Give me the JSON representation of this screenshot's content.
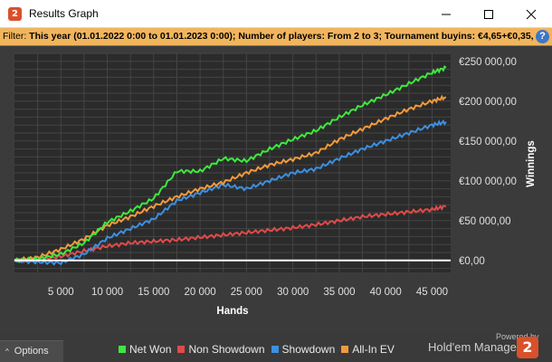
{
  "window": {
    "title": "Results Graph",
    "app_icon_glyph": "2"
  },
  "filter": {
    "prefix": "Filter: ",
    "text": "This year (01.01.2022 0:00 to 01.01.2023 0:00); Number of players: From 2 to 3; Tournament buyins: €4,65+€0,35, ",
    "help_glyph": "?"
  },
  "options": {
    "caret": "^",
    "label": "Options"
  },
  "brand": {
    "powered_by": "Powered by",
    "name": "Hold'em Manager",
    "logo_glyph": "2"
  },
  "colors": {
    "net_won": "#3ee83e",
    "non_showdown": "#e04a4a",
    "showdown": "#3d8fe0",
    "all_in_ev": "#f29a3b",
    "zero_line": "#ffffff",
    "plot_bg": "#2b2b2b",
    "grid": "#454545"
  },
  "chart_data": {
    "type": "line",
    "xlabel": "Hands",
    "ylabel": "Winnings",
    "xlim": [
      0,
      47000
    ],
    "ylim": [
      -15000,
      260000
    ],
    "x_ticks": [
      5000,
      10000,
      15000,
      20000,
      25000,
      30000,
      35000,
      40000,
      45000
    ],
    "x_tick_labels": [
      "5 000",
      "10 000",
      "15 000",
      "20 000",
      "25 000",
      "30 000",
      "35 000",
      "40 000",
      "45 000"
    ],
    "y_ticks": [
      0,
      50000,
      100000,
      150000,
      200000,
      250000
    ],
    "y_tick_labels": [
      "€0,00",
      "€50 000,00",
      "€100 000,00",
      "€150 000,00",
      "€200 000,00",
      "€250 000,00"
    ],
    "grid": true,
    "legend_position": "bottom",
    "x": [
      0,
      2500,
      5000,
      7500,
      10000,
      12500,
      15000,
      17500,
      20000,
      22500,
      25000,
      27500,
      30000,
      32500,
      35000,
      37500,
      40000,
      42500,
      45000,
      46500
    ],
    "series": [
      {
        "name": "Net Won",
        "color": "#3ee83e",
        "values": [
          0,
          2000,
          8000,
          22000,
          48000,
          62000,
          78000,
          112000,
          112000,
          128000,
          125000,
          140000,
          152000,
          163000,
          180000,
          195000,
          208000,
          222000,
          236000,
          242000
        ]
      },
      {
        "name": "Non Showdown",
        "color": "#e04a4a",
        "values": [
          0,
          1000,
          5000,
          12000,
          18000,
          22000,
          24000,
          26000,
          29000,
          32000,
          35000,
          38000,
          41000,
          45000,
          50000,
          55000,
          58000,
          61000,
          64000,
          68000
        ]
      },
      {
        "name": "Showdown",
        "color": "#3d8fe0",
        "values": [
          0,
          -2000,
          -3000,
          8000,
          28000,
          40000,
          52000,
          75000,
          85000,
          95000,
          90000,
          100000,
          110000,
          115000,
          128000,
          140000,
          150000,
          160000,
          170000,
          174000
        ]
      },
      {
        "name": "All-In EV",
        "color": "#f29a3b",
        "values": [
          0,
          4000,
          14000,
          27000,
          44000,
          55000,
          68000,
          80000,
          90000,
          98000,
          110000,
          120000,
          127000,
          135000,
          152000,
          165000,
          178000,
          190000,
          200000,
          205000
        ]
      }
    ]
  }
}
